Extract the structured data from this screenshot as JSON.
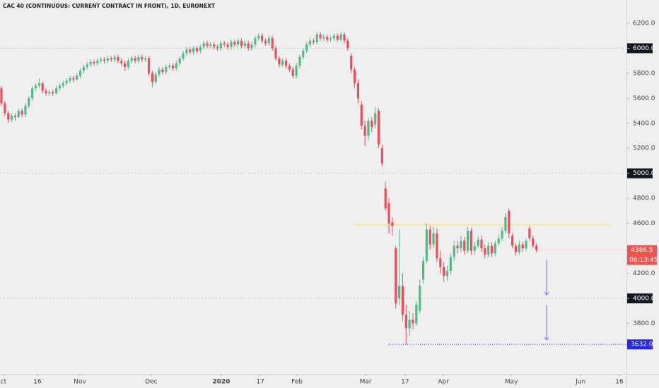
{
  "chart_data": {
    "type": "candlestick",
    "title": "CAC 40 (CONTINUOUS: CURRENT CONTRACT IN FRONT), 1D, EURONEXT",
    "up_color": "#53b987",
    "down_color": "#eb4d5c",
    "open": [
      5680,
      5560,
      5480,
      5430,
      5460,
      5450,
      5500,
      5470,
      5540,
      5600,
      5680,
      5700,
      5720,
      5660,
      5640,
      5650,
      5640,
      5680,
      5700,
      5720,
      5740,
      5760,
      5750,
      5780,
      5820,
      5850,
      5870,
      5890,
      5880,
      5900,
      5910,
      5900,
      5920,
      5910,
      5930,
      5900,
      5880,
      5850,
      5900,
      5920,
      5900,
      5930,
      5910,
      5920,
      5800,
      5730,
      5790,
      5830,
      5810,
      5850,
      5860,
      5840,
      5880,
      5920,
      5960,
      5990,
      5970,
      6000,
      5980,
      6010,
      6040,
      6020,
      6030,
      6010,
      6000,
      6040,
      6030,
      6010,
      6050,
      6030,
      6060,
      6020,
      6040,
      6000,
      6030,
      6080,
      6100,
      6060,
      6040,
      6080,
      6000,
      5920,
      5870,
      5900,
      5860,
      5830,
      5780,
      5860,
      5930,
      5980,
      6030,
      6060,
      6050,
      6110,
      6080,
      6090,
      6070,
      6080,
      6100,
      6070,
      6110,
      6060,
      5940,
      5830,
      5720,
      5550,
      5380,
      5300,
      5420,
      5390,
      5500,
      5200,
      4880,
      4760,
      4610,
      4400,
      4000,
      4100,
      3870,
      3760,
      3830,
      3800,
      3900,
      4150,
      4300,
      4550,
      4430,
      4520,
      4320,
      4250,
      4180,
      4220,
      4330,
      4420,
      4400,
      4460,
      4380,
      4540,
      4380,
      4420,
      4470,
      4400,
      4350,
      4420,
      4360,
      4440,
      4480,
      4540,
      4700,
      4500,
      4420,
      4370,
      4430,
      4400,
      4560,
      4480,
      4420
    ],
    "high": [
      5700,
      5580,
      5500,
      5480,
      5480,
      5520,
      5520,
      5560,
      5620,
      5700,
      5720,
      5760,
      5730,
      5680,
      5670,
      5670,
      5700,
      5720,
      5740,
      5760,
      5780,
      5780,
      5800,
      5840,
      5870,
      5890,
      5910,
      5910,
      5920,
      5930,
      5930,
      5940,
      5940,
      5950,
      5950,
      5920,
      5900,
      5920,
      5940,
      5940,
      5950,
      5950,
      5940,
      5940,
      5820,
      5810,
      5850,
      5850,
      5870,
      5880,
      5880,
      5900,
      5940,
      5980,
      6010,
      6010,
      6020,
      6020,
      6030,
      6060,
      6060,
      6050,
      6050,
      6030,
      6060,
      6060,
      6050,
      6070,
      6070,
      6080,
      6080,
      6060,
      6060,
      6050,
      6100,
      6120,
      6120,
      6080,
      6100,
      6100,
      6020,
      5940,
      5920,
      5920,
      5880,
      5850,
      5880,
      5950,
      6000,
      6050,
      6080,
      6080,
      6130,
      6130,
      6110,
      6110,
      6100,
      6120,
      6120,
      6130,
      6130,
      6080,
      5960,
      5850,
      5750,
      5580,
      5420,
      5440,
      5450,
      5530,
      5520,
      5230,
      4930,
      4800,
      4650,
      4420,
      4550,
      4200,
      3950,
      3900,
      3880,
      3980,
      4150,
      4330,
      4600,
      4580,
      4570,
      4560,
      4380,
      4290,
      4260,
      4360,
      4460,
      4460,
      4500,
      4490,
      4570,
      4560,
      4450,
      4500,
      4500,
      4430,
      4450,
      4450,
      4460,
      4510,
      4570,
      4680,
      4720,
      4520,
      4440,
      4460,
      4450,
      4480,
      4580,
      4500,
      4440
    ],
    "low": [
      5540,
      5460,
      5400,
      5410,
      5420,
      5440,
      5450,
      5450,
      5520,
      5580,
      5660,
      5680,
      5640,
      5620,
      5620,
      5620,
      5630,
      5660,
      5680,
      5700,
      5720,
      5730,
      5740,
      5760,
      5800,
      5830,
      5850,
      5860,
      5860,
      5880,
      5880,
      5880,
      5890,
      5890,
      5880,
      5860,
      5820,
      5830,
      5880,
      5880,
      5880,
      5890,
      5890,
      5780,
      5690,
      5710,
      5770,
      5790,
      5790,
      5830,
      5820,
      5820,
      5860,
      5900,
      5940,
      5950,
      5950,
      5960,
      5960,
      5990,
      6000,
      6000,
      5990,
      5980,
      5980,
      6010,
      5990,
      5990,
      6010,
      6010,
      6000,
      6000,
      5980,
      5980,
      6010,
      6060,
      6040,
      6020,
      6020,
      5980,
      5900,
      5850,
      5850,
      5840,
      5810,
      5760,
      5760,
      5840,
      5910,
      5960,
      6010,
      6030,
      6030,
      6060,
      6060,
      6050,
      6050,
      6060,
      6050,
      6050,
      6040,
      5980,
      5800,
      5680,
      5560,
      5350,
      5220,
      5260,
      5330,
      5360,
      5200,
      5060,
      4700,
      4520,
      4500,
      3920,
      3950,
      3820,
      3632,
      3700,
      3750,
      3780,
      3880,
      4120,
      4280,
      4390,
      4400,
      4290,
      4200,
      4130,
      4140,
      4190,
      4300,
      4360,
      4370,
      4350,
      4360,
      4350,
      4350,
      4400,
      4370,
      4320,
      4330,
      4330,
      4340,
      4420,
      4460,
      4520,
      4480,
      4400,
      4340,
      4350,
      4370,
      4380,
      4460,
      4400,
      4370
    ],
    "close": [
      5560,
      5480,
      5430,
      5460,
      5450,
      5500,
      5470,
      5540,
      5600,
      5680,
      5700,
      5720,
      5660,
      5640,
      5650,
      5640,
      5680,
      5700,
      5720,
      5740,
      5760,
      5750,
      5780,
      5820,
      5850,
      5870,
      5890,
      5880,
      5900,
      5910,
      5900,
      5920,
      5910,
      5930,
      5900,
      5880,
      5850,
      5900,
      5920,
      5900,
      5930,
      5910,
      5920,
      5800,
      5730,
      5790,
      5830,
      5810,
      5850,
      5860,
      5840,
      5880,
      5920,
      5960,
      5990,
      5970,
      6000,
      5980,
      6010,
      6040,
      6020,
      6030,
      6010,
      6000,
      6040,
      6030,
      6010,
      6050,
      6030,
      6060,
      6020,
      6040,
      6000,
      6030,
      6080,
      6100,
      6060,
      6040,
      6080,
      6000,
      5920,
      5870,
      5900,
      5860,
      5830,
      5780,
      5860,
      5930,
      5980,
      6030,
      6060,
      6050,
      6110,
      6080,
      6090,
      6070,
      6080,
      6100,
      6070,
      6110,
      6060,
      6000,
      5830,
      5720,
      5600,
      5380,
      5300,
      5420,
      5370,
      5480,
      5230,
      5080,
      4720,
      4600,
      4580,
      3960,
      4100,
      3870,
      3760,
      3830,
      3800,
      3950,
      4100,
      4300,
      4550,
      4430,
      4520,
      4320,
      4250,
      4180,
      4220,
      4330,
      4420,
      4400,
      4460,
      4380,
      4540,
      4380,
      4420,
      4470,
      4400,
      4350,
      4420,
      4360,
      4440,
      4480,
      4540,
      4650,
      4520,
      4420,
      4370,
      4430,
      4400,
      4460,
      4480,
      4420,
      4386.5
    ],
    "xlim": [
      -0.41,
      182.27
    ],
    "xticks": [
      {
        "value": 0.6,
        "label": "ct"
      },
      {
        "value": 10.5,
        "label": "16"
      },
      {
        "value": 22.9,
        "label": "Nov"
      },
      {
        "value": 43.7,
        "label": "Dec"
      },
      {
        "value": 64.1,
        "label": "2020"
      },
      {
        "value": 75.5,
        "label": "17"
      },
      {
        "value": 86.2,
        "label": "Feb"
      },
      {
        "value": 106.2,
        "label": "Mar"
      },
      {
        "value": 117.7,
        "label": "17"
      },
      {
        "value": 128.9,
        "label": "Apr"
      },
      {
        "value": 148.7,
        "label": "May"
      },
      {
        "value": 168.9,
        "label": "Jun"
      },
      {
        "value": 180.2,
        "label": "16"
      }
    ],
    "ylim": [
      3396,
      6386
    ],
    "yticks": [
      {
        "value": 3800,
        "label": "3800.0"
      },
      {
        "value": 4000,
        "label": "4000.0"
      },
      {
        "value": 4200,
        "label": "4200.0"
      },
      {
        "value": 4400,
        "label": "4400.0"
      },
      {
        "value": 4600,
        "label": "4600.0"
      },
      {
        "value": 4800,
        "label": "4800.0"
      },
      {
        "value": 5000,
        "label": "5000.0"
      },
      {
        "value": 5200,
        "label": "5200.0"
      },
      {
        "value": 5400,
        "label": "5400.0"
      },
      {
        "value": 5600,
        "label": "5600.0"
      },
      {
        "value": 5800,
        "label": "5800.0"
      },
      {
        "value": 6000,
        "label": "6000.0"
      },
      {
        "value": 6200,
        "label": "6200.0"
      }
    ],
    "grid_lines": [
      4000,
      5000,
      6000
    ],
    "levels": [
      {
        "value": 4590,
        "color": "#f7e9a0"
      },
      {
        "value": 3632,
        "label": "3632.0",
        "color": "#2424f0"
      }
    ],
    "last_price_label": "4386.5",
    "countdown": "06:13:45",
    "last_price_color": "#ef5350"
  }
}
